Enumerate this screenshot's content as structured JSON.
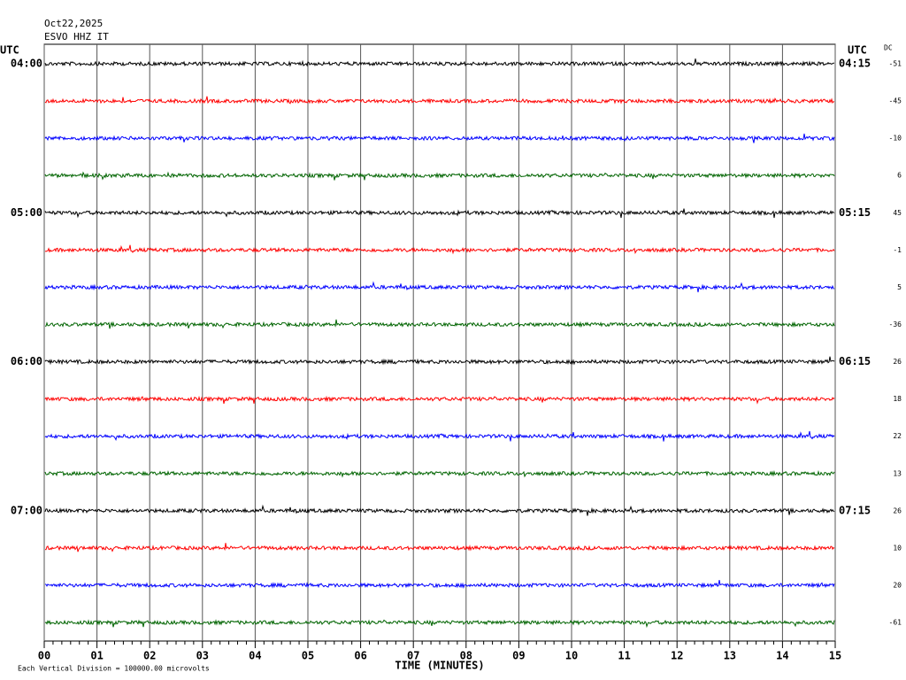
{
  "header": {
    "date": "Oct22,2025",
    "station": "ESVO HHZ IT"
  },
  "left_title": "UTC",
  "right_title": "UTC",
  "dc_title": "DC",
  "rows": [
    {
      "left": "04:00",
      "right": "04:15",
      "dc": -51,
      "color": "#000000"
    },
    {
      "dc": -45,
      "color": "#ff0000"
    },
    {
      "dc": -10,
      "color": "#0000ff"
    },
    {
      "dc": 6,
      "color": "#006400"
    },
    {
      "left": "05:00",
      "right": "05:15",
      "dc": 45,
      "color": "#000000"
    },
    {
      "dc": -1,
      "color": "#ff0000"
    },
    {
      "dc": 5,
      "color": "#0000ff"
    },
    {
      "dc": -36,
      "color": "#006400"
    },
    {
      "left": "06:00",
      "right": "06:15",
      "dc": 26,
      "color": "#000000"
    },
    {
      "dc": 18,
      "color": "#ff0000"
    },
    {
      "dc": 22,
      "color": "#0000ff"
    },
    {
      "dc": 13,
      "color": "#006400"
    },
    {
      "left": "07:00",
      "right": "07:15",
      "dc": 26,
      "color": "#000000"
    },
    {
      "dc": 10,
      "color": "#ff0000"
    },
    {
      "dc": 20,
      "color": "#0000ff"
    },
    {
      "dc": -61,
      "color": "#006400"
    }
  ],
  "x_axis": {
    "title": "TIME (MINUTES)",
    "ticks": [
      "00",
      "01",
      "02",
      "03",
      "04",
      "05",
      "06",
      "07",
      "08",
      "09",
      "10",
      "11",
      "12",
      "13",
      "14",
      "15"
    ]
  },
  "footer": "Each Vertical Division = 100000.00 microvolts"
}
